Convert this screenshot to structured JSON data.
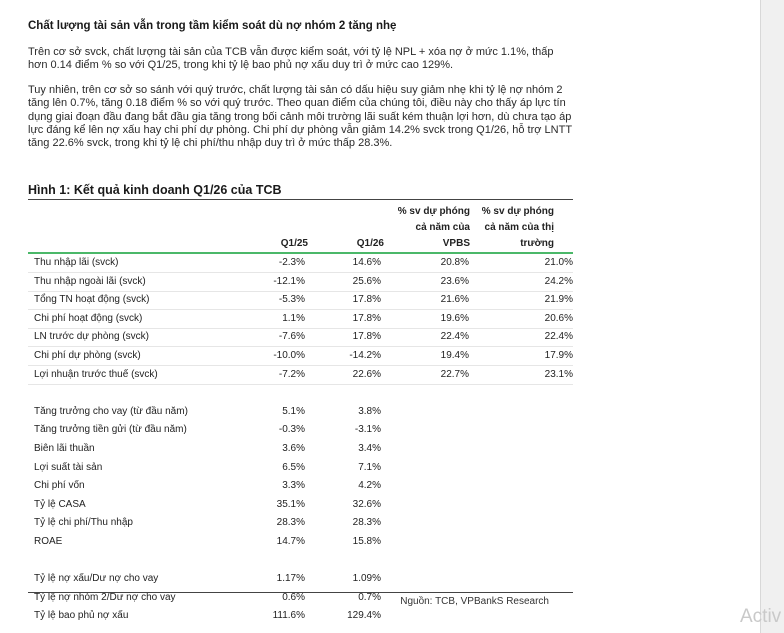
{
  "heading": "Chất lượng tài sản vẫn trong tầm kiểm soát dù nợ nhóm 2 tăng nhẹ",
  "paragraph1": "Trên cơ sở svck, chất lượng tài sản của TCB vẫn được kiểm soát, với tỷ lệ NPL + xóa nợ ở mức 1.1%, thấp hơn 0.14 điểm % so với Q1/25, trong khi tỷ lệ bao phủ nợ xấu duy trì ở mức cao 129%.",
  "paragraph2": "Tuy nhiên, trên cơ sở so sánh với quý trước, chất lượng tài sản có dấu hiệu suy giảm nhẹ khi tỷ lệ nợ nhóm 2 tăng lên 0.7%, tăng 0.18 điểm % so với quý trước. Theo quan điểm của chúng tôi, điều này cho thấy áp lực tín dụng giai đoạn đầu đang bắt đầu gia tăng trong bối cảnh môi trường lãi suất kém thuận lợi hơn, dù chưa tạo áp lực đáng kể lên nợ xấu hay chi phí dự phòng. Chi phí dự phòng vẫn giảm 14.2% svck trong Q1/26, hỗ trợ LNTT tăng 22.6% svck, trong khi tỷ lệ chi phí/thu nhập duy trì ở mức thấp 28.3%.",
  "figure": {
    "title": "Hình 1: Kết quả kinh doanh Q1/26 của TCB",
    "columns": {
      "q125": "Q1/25",
      "q126": "Q1/26",
      "vpbs": "% sv dự phóng cả năm của VPBS",
      "market": "% sv dự phóng cả năm của thị trường"
    },
    "rows": [
      {
        "label": "Thu nhập lãi (svck)",
        "q125": "-2.3%",
        "q126": "14.6%",
        "vpbs": "20.8%",
        "market": "21.0%"
      },
      {
        "label": "Thu nhập ngoài lãi (svck)",
        "q125": "-12.1%",
        "q126": "25.6%",
        "vpbs": "23.6%",
        "market": "24.2%"
      },
      {
        "label": "Tổng TN hoạt động (svck)",
        "q125": "-5.3%",
        "q126": "17.8%",
        "vpbs": "21.6%",
        "market": "21.9%"
      },
      {
        "label": "Chi phí hoạt động (svck)",
        "q125": "1.1%",
        "q126": "17.8%",
        "vpbs": "19.6%",
        "market": "20.6%"
      },
      {
        "label": "LN trước dự phòng (svck)",
        "q125": "-7.6%",
        "q126": "17.8%",
        "vpbs": "22.4%",
        "market": "22.4%"
      },
      {
        "label": "Chi phí dự phòng (svck)",
        "q125": "-10.0%",
        "q126": "-14.2%",
        "vpbs": "19.4%",
        "market": "17.9%"
      },
      {
        "label": "Lợi nhuận trước thuế (svck)",
        "q125": "-7.2%",
        "q126": "22.6%",
        "vpbs": "22.7%",
        "market": "23.1%"
      },
      {
        "label": "",
        "q125": "",
        "q126": "",
        "vpbs": "",
        "market": ""
      },
      {
        "label": "Tăng trưởng cho vay (từ đầu năm)",
        "q125": "5.1%",
        "q126": "3.8%",
        "vpbs": "",
        "market": ""
      },
      {
        "label": "Tăng trưởng tiền gửi (từ đầu năm)",
        "q125": "-0.3%",
        "q126": "-3.1%",
        "vpbs": "",
        "market": ""
      },
      {
        "label": "Biên lãi thuần",
        "q125": "3.6%",
        "q126": "3.4%",
        "vpbs": "",
        "market": ""
      },
      {
        "label": "Lợi suất tài sản",
        "q125": "6.5%",
        "q126": "7.1%",
        "vpbs": "",
        "market": ""
      },
      {
        "label": "Chi phí vốn",
        "q125": "3.3%",
        "q126": "4.2%",
        "vpbs": "",
        "market": ""
      },
      {
        "label": "Tỷ lệ CASA",
        "q125": "35.1%",
        "q126": "32.6%",
        "vpbs": "",
        "market": ""
      },
      {
        "label": "Tỷ lệ chi phí/Thu nhập",
        "q125": "28.3%",
        "q126": "28.3%",
        "vpbs": "",
        "market": ""
      },
      {
        "label": "ROAE",
        "q125": "14.7%",
        "q126": "15.8%",
        "vpbs": "",
        "market": ""
      },
      {
        "label": "",
        "q125": "",
        "q126": "",
        "vpbs": "",
        "market": ""
      },
      {
        "label": "Tỷ lệ nợ xấu/Dư nợ cho vay",
        "q125": "1.17%",
        "q126": "1.09%",
        "vpbs": "",
        "market": ""
      },
      {
        "label": "Tỷ lệ nợ nhóm 2/Dư nợ cho vay",
        "q125": "0.6%",
        "q126": "0.7%",
        "vpbs": "",
        "market": ""
      },
      {
        "label": "Tỷ lệ bao phủ nợ xấu",
        "q125": "111.6%",
        "q126": "129.4%",
        "vpbs": "",
        "market": ""
      }
    ],
    "source": "Nguồn: TCB, VPBankS Research"
  },
  "overlay_text": "Activ"
}
